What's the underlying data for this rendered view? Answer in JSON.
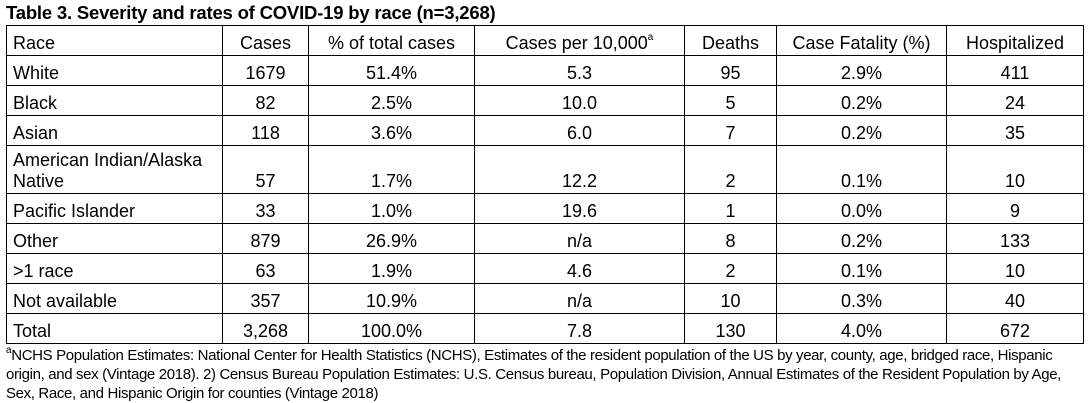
{
  "title": "Table 3. Severity and rates of COVID-19 by race (n=3,268)",
  "headers": [
    "Race",
    "Cases",
    "% of total cases",
    "Cases per 10,000",
    "Deaths",
    "Case Fatality (%)",
    "Hospitalized"
  ],
  "header_sup": "a",
  "rows": [
    [
      "White",
      "1679",
      "51.4%",
      "5.3",
      "95",
      "2.9%",
      "411"
    ],
    [
      "Black",
      "82",
      "2.5%",
      "10.0",
      "5",
      "0.2%",
      "24"
    ],
    [
      "Asian",
      "118",
      "3.6%",
      "6.0",
      "7",
      "0.2%",
      "35"
    ],
    [
      "American Indian/Alaska Native",
      "57",
      "1.7%",
      "12.2",
      "2",
      "0.1%",
      "10"
    ],
    [
      "Pacific Islander",
      "33",
      "1.0%",
      "19.6",
      "1",
      "0.0%",
      "9"
    ],
    [
      "Other",
      "879",
      "26.9%",
      "n/a",
      "8",
      "0.2%",
      "133"
    ],
    [
      ">1 race",
      "63",
      "1.9%",
      "4.6",
      "2",
      "0.1%",
      "10"
    ],
    [
      "Not available",
      "357",
      "10.9%",
      "n/a",
      "10",
      "0.3%",
      "40"
    ],
    [
      "Total",
      "3,268",
      "100.0%",
      "7.8",
      "130",
      "4.0%",
      "672"
    ]
  ],
  "footnote_sup": "a",
  "footnote": "NCHS Population Estimates: National Center for Health Statistics (NCHS), Estimates of the resident population of the US by year, county, age, bridged race, Hispanic origin, and sex (Vintage 2018). 2) Census Bureau Population Estimates: U.S. Census bureau, Population Division, Annual Estimates of the Resident Population by Age, Sex, Race, and Hispanic Origin for counties (Vintage 2018)"
}
